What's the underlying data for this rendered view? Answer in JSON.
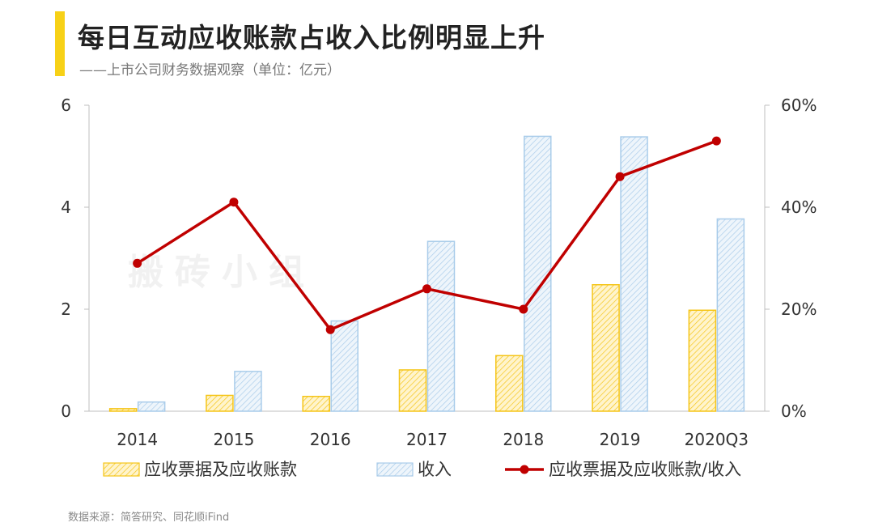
{
  "title": "每日互动应收账款占收入比例明显上升",
  "subtitle": "——上市公司财务数据观察（单位：亿元）",
  "source": "数据来源：简答研究、同花顺iFind",
  "watermark": "搬砖小组",
  "colors": {
    "accent": "#F7D117",
    "receivables_fill": "#FFE9A6",
    "receivables_stroke": "#F5C518",
    "revenue_fill": "#DDEBF7",
    "revenue_stroke": "#A9CCEA",
    "ratio_line": "#C00000"
  },
  "chart_data": {
    "type": "bar",
    "categories": [
      "2014",
      "2015",
      "2016",
      "2017",
      "2018",
      "2019",
      "2020Q3"
    ],
    "series": [
      {
        "name": "应收票据及应收账款",
        "kind": "bar",
        "axis": "left",
        "values": [
          0.05,
          0.31,
          0.29,
          0.81,
          1.09,
          2.48,
          1.98
        ]
      },
      {
        "name": "收入",
        "kind": "bar",
        "axis": "left",
        "values": [
          0.18,
          0.78,
          1.77,
          3.33,
          5.39,
          5.38,
          3.77
        ]
      },
      {
        "name": "应收票据及应收账款/收入",
        "kind": "line",
        "axis": "right",
        "values": [
          0.29,
          0.41,
          0.16,
          0.24,
          0.2,
          0.46,
          0.53
        ]
      }
    ],
    "y_left": {
      "min": 0,
      "max": 6,
      "ticks": [
        "0",
        "2",
        "4",
        "6"
      ]
    },
    "y_right": {
      "min": 0,
      "max": 0.6,
      "ticks": [
        "0%",
        "20%",
        "40%",
        "60%"
      ]
    },
    "legend_position": "bottom",
    "grid": false
  }
}
